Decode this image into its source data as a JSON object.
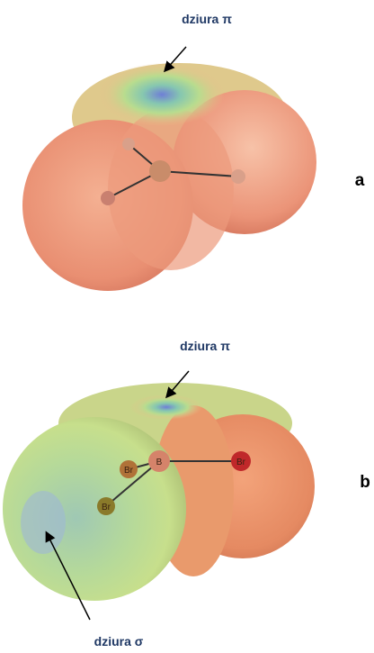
{
  "panels": [
    {
      "label": "a",
      "annotations": [
        "dziura π"
      ]
    },
    {
      "label": "b",
      "annotations": [
        "dziura π",
        "dziura σ"
      ],
      "atoms": [
        "B",
        "Br",
        "Br",
        "Br"
      ]
    }
  ]
}
